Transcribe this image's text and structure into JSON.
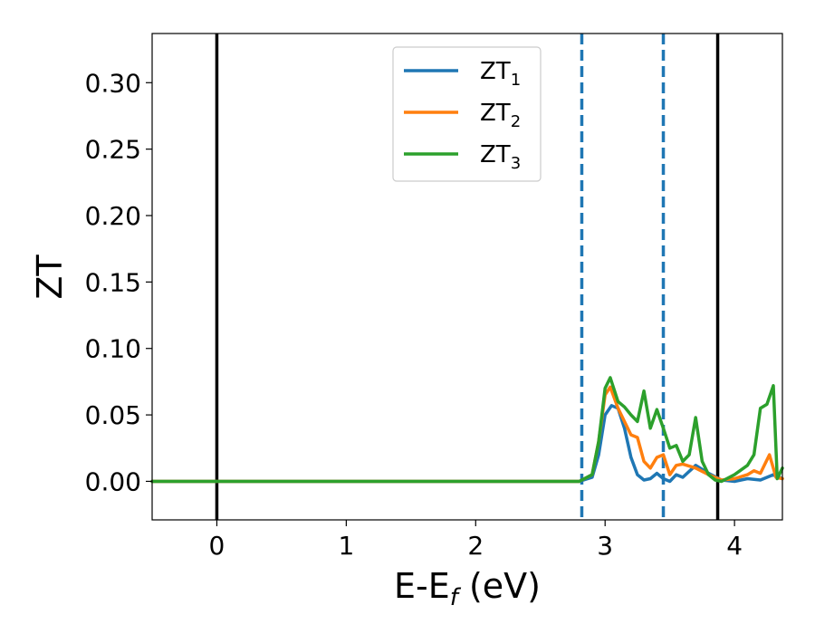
{
  "chart_data": {
    "type": "line",
    "title": "",
    "xlabel": "E-E",
    "xlabel_sub": "f",
    "xlabel_unit": " (eV)",
    "ylabel": "ZT",
    "xlim": [
      -0.5,
      4.37
    ],
    "ylim": [
      -0.029,
      0.337
    ],
    "xticks": [
      0,
      1,
      2,
      3,
      4
    ],
    "yticks": [
      0.0,
      0.05,
      0.1,
      0.15,
      0.2,
      0.25,
      0.3
    ],
    "ytick_labels": [
      "0.00",
      "0.05",
      "0.10",
      "0.15",
      "0.20",
      "0.25",
      "0.30"
    ],
    "grid": false,
    "legend_position": "top-center",
    "vlines": [
      {
        "x": 0.0,
        "style": "solid",
        "color": "#000000"
      },
      {
        "x": 3.87,
        "style": "solid",
        "color": "#000000"
      },
      {
        "x": 2.82,
        "style": "dashed",
        "color": "#1f77b4"
      },
      {
        "x": 3.45,
        "style": "dashed",
        "color": "#1f77b4"
      }
    ],
    "series": [
      {
        "name": "ZT",
        "name_sub": "1",
        "color": "#1f77b4",
        "x": [
          -0.5,
          2.8,
          2.9,
          2.95,
          3.0,
          3.05,
          3.1,
          3.15,
          3.2,
          3.25,
          3.3,
          3.35,
          3.4,
          3.45,
          3.5,
          3.55,
          3.6,
          3.7,
          3.8,
          3.9,
          4.0,
          4.1,
          4.2,
          4.3,
          4.37
        ],
        "y": [
          0.0,
          0.0,
          0.003,
          0.02,
          0.05,
          0.057,
          0.055,
          0.04,
          0.018,
          0.005,
          0.001,
          0.002,
          0.006,
          0.002,
          0.0,
          0.005,
          0.003,
          0.012,
          0.006,
          0.001,
          0.0,
          0.002,
          0.001,
          0.005,
          0.002
        ]
      },
      {
        "name": "ZT",
        "name_sub": "2",
        "color": "#ff7f0e",
        "x": [
          -0.5,
          2.8,
          2.9,
          2.95,
          3.0,
          3.04,
          3.1,
          3.15,
          3.2,
          3.25,
          3.3,
          3.35,
          3.4,
          3.45,
          3.5,
          3.55,
          3.6,
          3.7,
          3.8,
          3.9,
          4.0,
          4.1,
          4.15,
          4.2,
          4.27,
          4.32,
          4.37
        ],
        "y": [
          0.0,
          0.0,
          0.005,
          0.03,
          0.065,
          0.071,
          0.055,
          0.045,
          0.035,
          0.033,
          0.015,
          0.01,
          0.018,
          0.02,
          0.005,
          0.012,
          0.013,
          0.01,
          0.005,
          0.001,
          0.002,
          0.005,
          0.008,
          0.006,
          0.02,
          0.003,
          0.002
        ]
      },
      {
        "name": "ZT",
        "name_sub": "3",
        "color": "#2ca02c",
        "x": [
          -0.5,
          2.8,
          2.9,
          2.95,
          3.0,
          3.04,
          3.1,
          3.15,
          3.2,
          3.25,
          3.3,
          3.35,
          3.4,
          3.45,
          3.5,
          3.55,
          3.6,
          3.65,
          3.7,
          3.75,
          3.8,
          3.85,
          3.9,
          4.0,
          4.1,
          4.15,
          4.2,
          4.25,
          4.3,
          4.33,
          4.37
        ],
        "y": [
          0.0,
          0.0,
          0.005,
          0.03,
          0.07,
          0.078,
          0.06,
          0.056,
          0.05,
          0.045,
          0.068,
          0.04,
          0.054,
          0.04,
          0.025,
          0.027,
          0.015,
          0.02,
          0.048,
          0.015,
          0.005,
          0.001,
          0.0,
          0.005,
          0.012,
          0.02,
          0.055,
          0.058,
          0.072,
          0.002,
          0.01
        ]
      }
    ]
  }
}
